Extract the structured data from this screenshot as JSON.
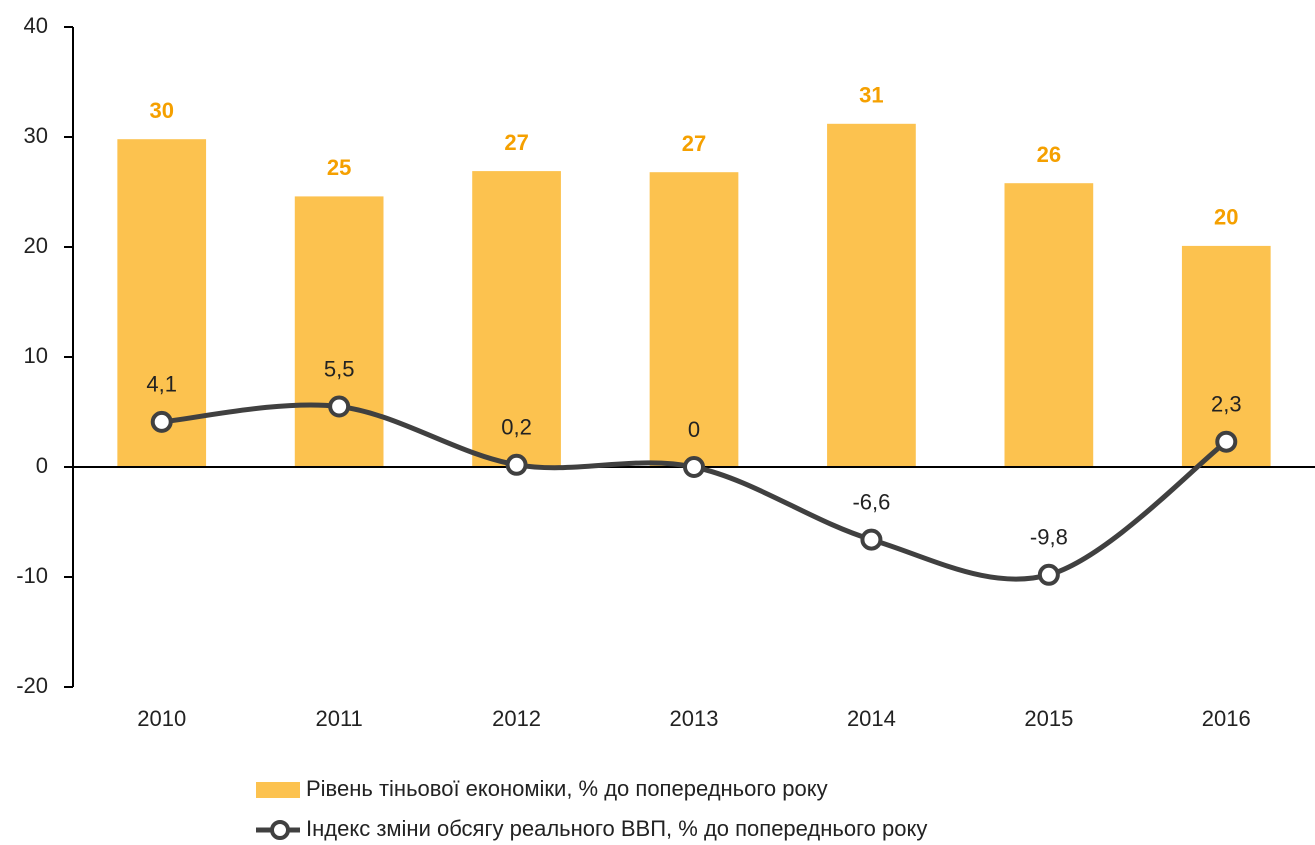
{
  "chart_data": {
    "type": "bar",
    "categories": [
      "2010",
      "2011",
      "2012",
      "2013",
      "2014",
      "2015",
      "2016"
    ],
    "series": [
      {
        "name": "Рівень тіньової економіки, % до попереднього року",
        "type": "bar",
        "color": "#fcc24f",
        "values": [
          29.8,
          24.6,
          26.9,
          26.8,
          31.2,
          25.8,
          20.1
        ],
        "value_labels": [
          "30",
          "25",
          "27",
          "27",
          "31",
          "26",
          "20"
        ]
      },
      {
        "name": "Індекс зміни обсягу реального ВВП, % до попереднього року",
        "type": "line",
        "color": "#404040",
        "values": [
          4.1,
          5.5,
          0.2,
          0,
          -6.6,
          -9.8,
          2.3
        ],
        "value_labels": [
          "4,1",
          "5,5",
          "0,2",
          "0",
          "-6,6",
          "-9,8",
          "2,3"
        ]
      }
    ],
    "ylim": [
      -20,
      40
    ],
    "yticks": [
      -20,
      -10,
      0,
      10,
      20,
      30,
      40
    ]
  }
}
